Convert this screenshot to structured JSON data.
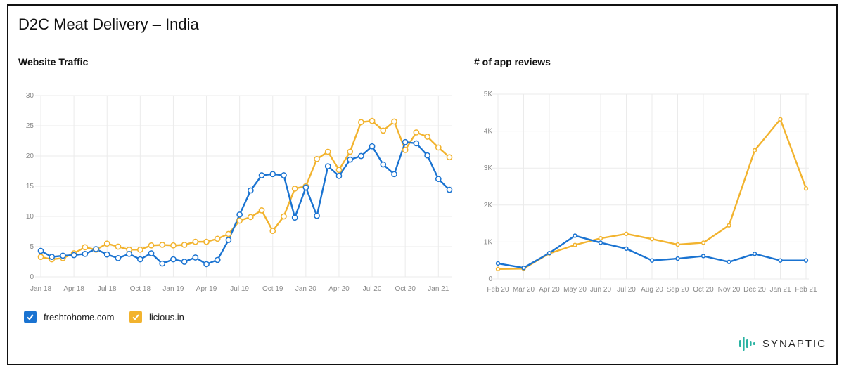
{
  "page": {
    "title": "D2C Meat Delivery – India"
  },
  "colors": {
    "fresh": "#1a73d1",
    "licious": "#f2b32e",
    "grid": "#ebebeb"
  },
  "legend": [
    {
      "label": "freshtohome.com",
      "color": "#1a73d1"
    },
    {
      "label": "licious.in",
      "color": "#f2b32e"
    }
  ],
  "brand": {
    "name": "SYNAPTIC"
  },
  "chart_data": [
    {
      "type": "line",
      "title": "Website Traffic",
      "ylim": [
        0,
        30
      ],
      "yticks": [
        "0",
        "5",
        "10",
        "15",
        "20",
        "25",
        "30"
      ],
      "x_tick_labels": [
        "Jan 18",
        "Apr 18",
        "Jul 18",
        "Oct 18",
        "Jan 19",
        "Apr 19",
        "Jul 19",
        "Oct 19",
        "Jan 20",
        "Apr 20",
        "Jul 20",
        "Oct 20",
        "Jan 21"
      ],
      "x": [
        "Jan 18",
        "Feb 18",
        "Mar 18",
        "Apr 18",
        "May 18",
        "Jun 18",
        "Jul 18",
        "Aug 18",
        "Sep 18",
        "Oct 18",
        "Nov 18",
        "Dec 18",
        "Jan 19",
        "Feb 19",
        "Mar 19",
        "Apr 19",
        "May 19",
        "Jun 19",
        "Jul 19",
        "Aug 19",
        "Sep 19",
        "Oct 19",
        "Nov 19",
        "Dec 19",
        "Jan 20",
        "Feb 20",
        "Mar 20",
        "Apr 20",
        "May 20",
        "Jun 20",
        "Jul 20",
        "Aug 20",
        "Sep 20",
        "Oct 20",
        "Nov 20",
        "Dec 20",
        "Jan 21",
        "Feb 21"
      ],
      "grid": true,
      "markers": true,
      "series": [
        {
          "name": "freshtohome.com",
          "color": "#1a73d1",
          "values": [
            4.3,
            3.3,
            3.5,
            3.6,
            3.8,
            4.6,
            3.7,
            3.1,
            3.8,
            2.9,
            3.9,
            2.2,
            2.9,
            2.5,
            3.2,
            2.1,
            2.8,
            6.1,
            10.3,
            14.3,
            16.8,
            17.0,
            16.8,
            9.8,
            14.8,
            10.1,
            18.3,
            16.7,
            19.4,
            20.0,
            21.6,
            18.6,
            17.0,
            22.3,
            22.1,
            20.1,
            16.2,
            14.4
          ]
        },
        {
          "name": "licious.in",
          "color": "#f2b32e",
          "values": [
            3.3,
            2.9,
            3.1,
            3.9,
            4.9,
            4.5,
            5.5,
            5.0,
            4.5,
            4.5,
            5.2,
            5.3,
            5.2,
            5.3,
            5.8,
            5.8,
            6.3,
            7.1,
            9.3,
            9.9,
            11.0,
            7.6,
            10.0,
            14.6,
            15.0,
            19.5,
            20.7,
            17.7,
            20.7,
            25.6,
            25.8,
            24.2,
            25.7,
            21.0,
            23.9,
            23.2,
            21.4,
            19.8
          ]
        }
      ]
    },
    {
      "type": "line",
      "title": "# of app reviews",
      "ylim": [
        0,
        5000
      ],
      "yticks": [
        "0",
        "1K",
        "2K",
        "3K",
        "4K",
        "5K"
      ],
      "x": [
        "Feb 20",
        "Mar 20",
        "Apr 20",
        "May 20",
        "Jun 20",
        "Jul 20",
        "Aug 20",
        "Sep 20",
        "Oct 20",
        "Nov 20",
        "Dec 20",
        "Jan 21",
        "Feb 21"
      ],
      "grid": true,
      "series": [
        {
          "name": "freshtohome.com",
          "color": "#1a73d1",
          "values": [
            420,
            300,
            700,
            1170,
            980,
            820,
            500,
            550,
            620,
            460,
            680,
            500,
            500
          ]
        },
        {
          "name": "licious.in",
          "color": "#f2b32e",
          "values": [
            270,
            280,
            690,
            920,
            1100,
            1220,
            1080,
            930,
            980,
            1450,
            3480,
            4320,
            2450
          ]
        }
      ]
    }
  ]
}
